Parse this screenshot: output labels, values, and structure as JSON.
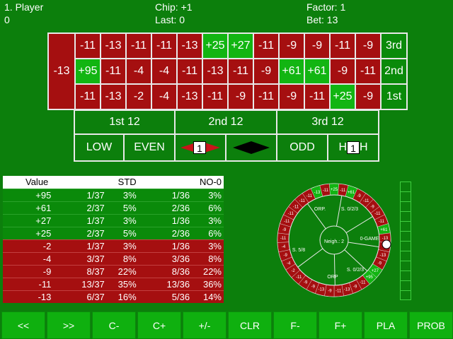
{
  "header": {
    "player_label": "1. Player",
    "player_value": "0",
    "chip_label": "Chip: +1",
    "last_label": "Last: 0",
    "factor_label": "Factor: 1",
    "bet_label": "Bet: 13"
  },
  "colors": {
    "green": "#0c7f0c",
    "red": "#a50f10",
    "bright_green": "#12b512",
    "white": "#e8e8e8"
  },
  "table": {
    "zero": "-13",
    "rows": [
      [
        "-11",
        "-13",
        "-11",
        "-11",
        "-13",
        "+25",
        "+27",
        "-11",
        "-9",
        "-9",
        "-11",
        "-9"
      ],
      [
        "+95",
        "-11",
        "-4",
        "-4",
        "-11",
        "-13",
        "-11",
        "-9",
        "+61",
        "+61",
        "-9",
        "-11"
      ],
      [
        "-11",
        "-13",
        "-2",
        "-4",
        "-13",
        "-11",
        "-9",
        "-11",
        "-9",
        "-11",
        "+25",
        "-9"
      ]
    ],
    "columns": [
      "3rd",
      "2nd",
      "1st"
    ],
    "dozens": [
      "1st 12",
      "2nd 12",
      "3rd 12"
    ],
    "outside": {
      "low": "LOW",
      "even": "EVEN",
      "red_marker": "1",
      "odd": "ODD",
      "high_left": "H",
      "high_marker": "1",
      "high_right": "H"
    }
  },
  "stats": {
    "headers": {
      "value": "Value",
      "std": "STD",
      "no0": "NO-0"
    },
    "rows": [
      {
        "value": "+95",
        "std": "1/37",
        "std_pct": "3%",
        "no0": "1/36",
        "no0_pct": "3%",
        "sign": "pos"
      },
      {
        "value": "+61",
        "std": "2/37",
        "std_pct": "5%",
        "no0": "2/36",
        "no0_pct": "6%",
        "sign": "pos"
      },
      {
        "value": "+27",
        "std": "1/37",
        "std_pct": "3%",
        "no0": "1/36",
        "no0_pct": "3%",
        "sign": "pos"
      },
      {
        "value": "+25",
        "std": "2/37",
        "std_pct": "5%",
        "no0": "2/36",
        "no0_pct": "6%",
        "sign": "pos"
      },
      {
        "value": "-2",
        "std": "1/37",
        "std_pct": "3%",
        "no0": "1/36",
        "no0_pct": "3%",
        "sign": "neg"
      },
      {
        "value": "-4",
        "std": "3/37",
        "std_pct": "8%",
        "no0": "3/36",
        "no0_pct": "8%",
        "sign": "neg"
      },
      {
        "value": "-9",
        "std": "8/37",
        "std_pct": "22%",
        "no0": "8/36",
        "no0_pct": "22%",
        "sign": "neg"
      },
      {
        "value": "-11",
        "std": "13/37",
        "std_pct": "35%",
        "no0": "13/36",
        "no0_pct": "36%",
        "sign": "neg"
      },
      {
        "value": "-13",
        "std": "6/37",
        "std_pct": "16%",
        "no0": "5/36",
        "no0_pct": "14%",
        "sign": "neg"
      }
    ]
  },
  "wheel": {
    "pockets": [
      "-13",
      "-11",
      "+25",
      "-11",
      "+61",
      "-9",
      "-11",
      "-9",
      "-11",
      "-11",
      "+61",
      "-13",
      "-9",
      "-13",
      "-9",
      "+27",
      "+95",
      "-11",
      "-9",
      "-13",
      "-11",
      "-9",
      "-13",
      "-9",
      "-9",
      "-11",
      "-2",
      "-4",
      "-9",
      "-4",
      "-11",
      "-9",
      "-11",
      "-11",
      "-11",
      "-11",
      "-11"
    ],
    "pocket_colors": [
      "grn",
      "red",
      "grn",
      "red",
      "grn",
      "red",
      "red",
      "red",
      "red",
      "red",
      "grn",
      "red",
      "red",
      "red",
      "red",
      "grn",
      "grn",
      "red",
      "red",
      "red",
      "red",
      "red",
      "red",
      "red",
      "red",
      "red",
      "red",
      "red",
      "red",
      "red",
      "red",
      "red",
      "red",
      "red",
      "red",
      "red",
      "red"
    ],
    "labels": {
      "orp_top": "ORP.",
      "s023_top": "S. 0/2/3",
      "zero_game": "0-GAME",
      "s58": "S. 5/8",
      "orp_bottom": "ORP",
      "s023_bottom": "S. 0/2/3",
      "neigh": "Neigh.: 2"
    }
  },
  "buttons": [
    "<<",
    ">>",
    "C-",
    "C+",
    "+/-",
    "CLR",
    "F-",
    "F+",
    "PLA",
    "PROB"
  ]
}
